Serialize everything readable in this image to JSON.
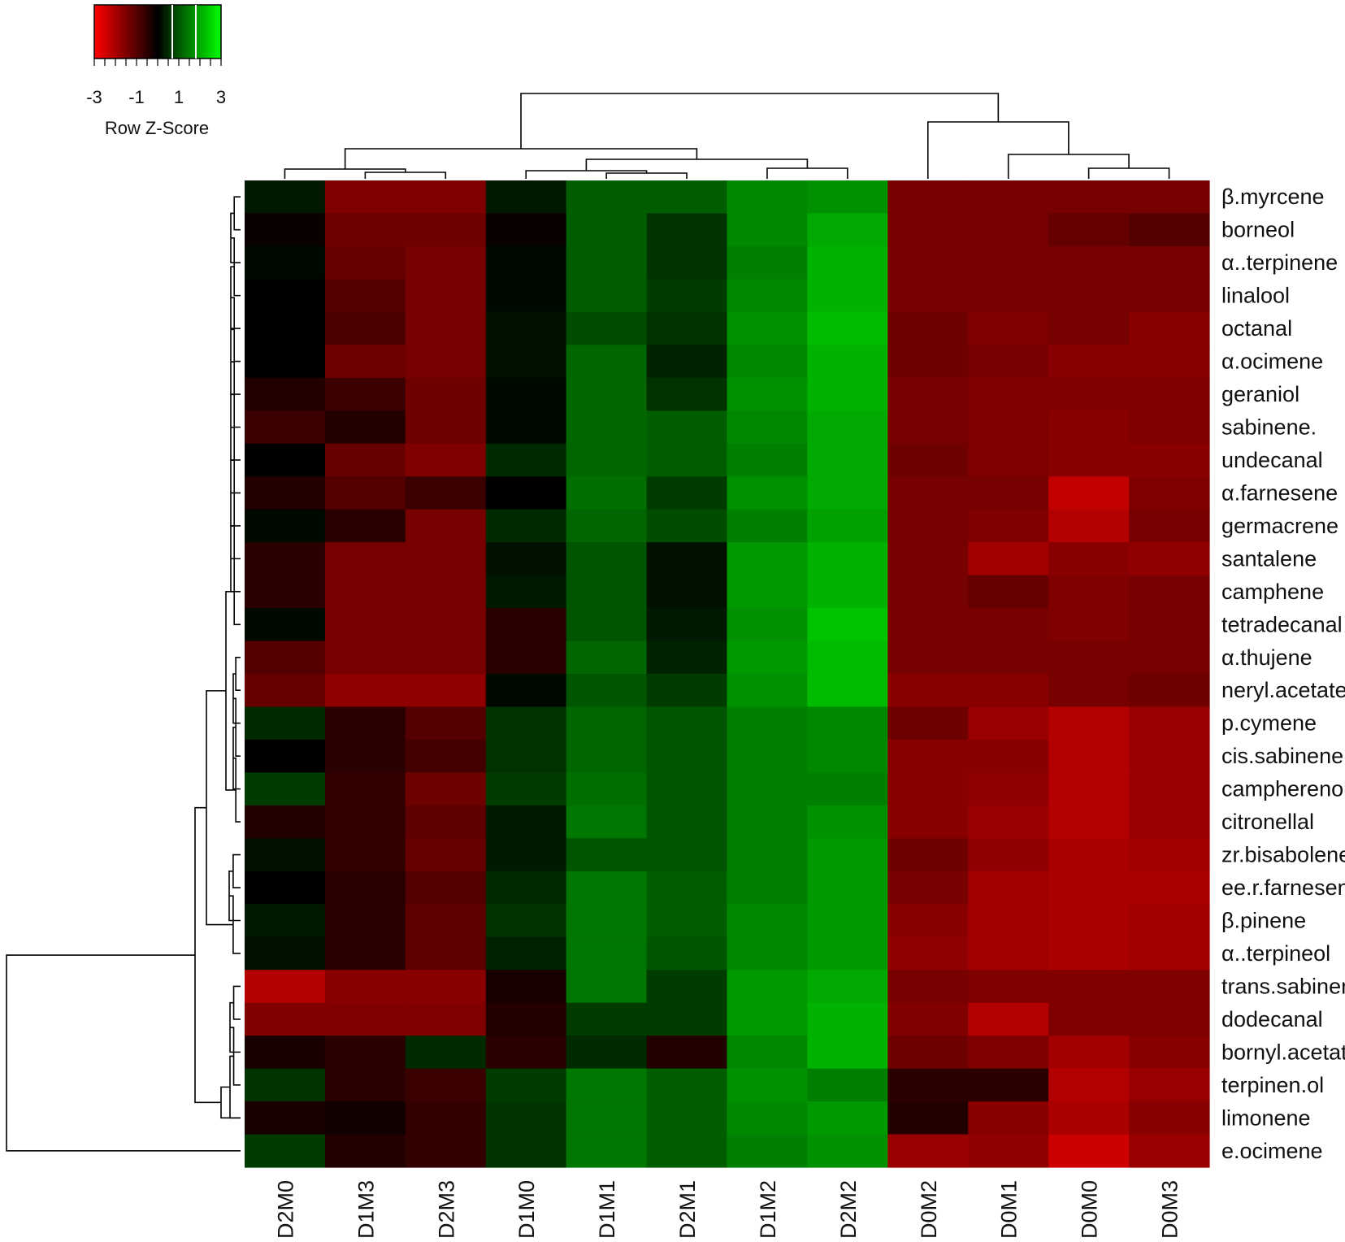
{
  "chart_data": {
    "type": "heatmap",
    "value_label": "Row Z-Score",
    "color_scale": {
      "low": "#ff0000",
      "mid": "#000000",
      "high": "#00ff00",
      "range": [
        -3,
        3
      ],
      "ticks": [
        "-3",
        "-1",
        "1",
        "3"
      ]
    },
    "columns": [
      "D2M0",
      "D1M3",
      "D2M3",
      "D1M0",
      "D1M1",
      "D2M1",
      "D1M2",
      "D2M2",
      "D0M2",
      "D0M1",
      "D0M0",
      "D0M3"
    ],
    "rows": [
      "β.myrcene",
      "borneol",
      "α..terpinene",
      "linalool",
      "octanal",
      "α.ocimene",
      "geraniol",
      "sabinene.",
      "undecanal",
      "α.farnesene",
      "germacrene",
      "santalene",
      "camphene",
      "tetradecanal",
      "α.thujene",
      "neryl.acetate",
      "p.cymene",
      "cis.sabinene",
      "campherenol",
      "citronellal",
      "zr.bisabolene",
      "ee.r.farnesene",
      "β.pinene",
      "α..terpineol",
      "trans.sabinene",
      "dodecanal",
      "bornyl.acetate",
      "terpinen.ol",
      "limonene",
      "e.ocimene"
    ],
    "values": [
      [
        0.3,
        -1.5,
        -1.5,
        0.3,
        1.1,
        1.1,
        1.6,
        1.7,
        -1.4,
        -1.4,
        -1.4,
        -1.4
      ],
      [
        -0.1,
        -1.3,
        -1.3,
        -0.1,
        1.1,
        0.6,
        1.6,
        2.0,
        -1.4,
        -1.4,
        -1.2,
        -1.0
      ],
      [
        0.1,
        -1.2,
        -1.4,
        0.1,
        1.1,
        0.6,
        1.5,
        2.1,
        -1.4,
        -1.4,
        -1.4,
        -1.4
      ],
      [
        0.0,
        -1.0,
        -1.4,
        0.1,
        1.1,
        0.7,
        1.6,
        2.1,
        -1.4,
        -1.4,
        -1.4,
        -1.4
      ],
      [
        0.0,
        -0.9,
        -1.4,
        0.2,
        0.9,
        0.6,
        1.7,
        2.2,
        -1.3,
        -1.5,
        -1.4,
        -1.6
      ],
      [
        0.0,
        -1.3,
        -1.4,
        0.2,
        1.2,
        0.4,
        1.6,
        2.1,
        -1.3,
        -1.4,
        -1.6,
        -1.6
      ],
      [
        -0.4,
        -0.7,
        -1.3,
        0.1,
        1.2,
        0.6,
        1.7,
        2.1,
        -1.4,
        -1.5,
        -1.5,
        -1.5
      ],
      [
        -0.7,
        -0.4,
        -1.3,
        0.1,
        1.2,
        1.1,
        1.6,
        2.0,
        -1.4,
        -1.5,
        -1.6,
        -1.5
      ],
      [
        0.0,
        -1.2,
        -1.5,
        0.5,
        1.2,
        1.1,
        1.5,
        2.0,
        -1.3,
        -1.5,
        -1.6,
        -1.6
      ],
      [
        -0.4,
        -1.0,
        -0.7,
        0.0,
        1.3,
        0.7,
        1.7,
        2.0,
        -1.4,
        -1.4,
        -2.3,
        -1.5
      ],
      [
        0.1,
        -0.5,
        -1.4,
        0.5,
        1.2,
        0.9,
        1.5,
        1.9,
        -1.4,
        -1.5,
        -2.1,
        -1.4
      ],
      [
        -0.5,
        -1.4,
        -1.4,
        0.2,
        1.0,
        0.2,
        1.8,
        2.1,
        -1.4,
        -1.9,
        -1.6,
        -1.7
      ],
      [
        -0.5,
        -1.4,
        -1.4,
        0.3,
        1.0,
        0.2,
        1.8,
        2.1,
        -1.4,
        -1.2,
        -1.5,
        -1.4
      ],
      [
        0.1,
        -1.4,
        -1.4,
        -0.5,
        1.0,
        0.3,
        1.7,
        2.3,
        -1.4,
        -1.4,
        -1.5,
        -1.4
      ],
      [
        -1.0,
        -1.4,
        -1.4,
        -0.5,
        1.2,
        0.4,
        1.8,
        2.2,
        -1.4,
        -1.4,
        -1.4,
        -1.4
      ],
      [
        -1.2,
        -1.7,
        -1.7,
        0.1,
        1.0,
        0.7,
        1.7,
        2.2,
        -1.6,
        -1.6,
        -1.4,
        -1.3
      ],
      [
        0.5,
        -0.5,
        -1.0,
        0.6,
        1.2,
        1.0,
        1.5,
        1.6,
        -1.3,
        -1.8,
        -2.1,
        -1.8
      ],
      [
        0.0,
        -0.5,
        -0.8,
        0.6,
        1.2,
        1.0,
        1.5,
        1.6,
        -1.6,
        -1.6,
        -2.1,
        -1.8
      ],
      [
        0.7,
        -0.6,
        -1.3,
        0.7,
        1.3,
        1.0,
        1.5,
        1.5,
        -1.6,
        -1.7,
        -2.1,
        -1.8
      ],
      [
        -0.4,
        -0.6,
        -1.1,
        0.3,
        1.4,
        1.0,
        1.5,
        1.7,
        -1.6,
        -1.8,
        -2.1,
        -1.8
      ],
      [
        0.2,
        -0.6,
        -1.2,
        0.3,
        1.0,
        1.0,
        1.5,
        1.8,
        -1.3,
        -1.7,
        -2.0,
        -1.9
      ],
      [
        0.0,
        -0.5,
        -1.0,
        0.5,
        1.4,
        1.1,
        1.5,
        1.8,
        -1.4,
        -1.9,
        -2.0,
        -2.0
      ],
      [
        0.3,
        -0.5,
        -1.1,
        0.6,
        1.4,
        1.1,
        1.6,
        1.8,
        -1.6,
        -1.9,
        -2.0,
        -1.9
      ],
      [
        0.2,
        -0.5,
        -1.1,
        0.4,
        1.4,
        1.0,
        1.6,
        1.8,
        -1.7,
        -1.9,
        -2.0,
        -1.9
      ],
      [
        -2.1,
        -1.6,
        -1.6,
        -0.3,
        1.4,
        0.7,
        1.8,
        2.0,
        -1.4,
        -1.5,
        -1.5,
        -1.5
      ],
      [
        -1.5,
        -1.5,
        -1.5,
        -0.4,
        0.7,
        0.7,
        1.8,
        2.1,
        -1.5,
        -2.1,
        -1.5,
        -1.5
      ],
      [
        -0.3,
        -0.5,
        0.5,
        -0.5,
        0.5,
        -0.4,
        1.6,
        2.1,
        -1.3,
        -1.5,
        -1.9,
        -1.6
      ],
      [
        0.6,
        -0.5,
        -0.7,
        0.7,
        1.4,
        1.1,
        1.7,
        1.5,
        -0.5,
        -0.5,
        -2.1,
        -1.8
      ],
      [
        -0.3,
        -0.2,
        -0.6,
        0.6,
        1.4,
        1.1,
        1.6,
        1.8,
        -0.4,
        -1.6,
        -2.0,
        -1.6
      ],
      [
        0.7,
        -0.4,
        -0.6,
        0.6,
        1.4,
        1.1,
        1.5,
        1.7,
        -1.8,
        -1.7,
        -2.4,
        -1.8
      ]
    ]
  }
}
